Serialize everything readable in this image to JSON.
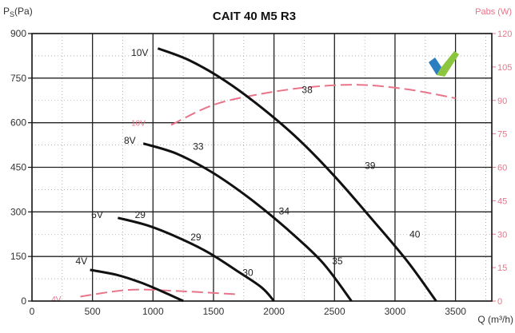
{
  "chart_data": {
    "type": "line",
    "title": "CAIT 40 M5 R3",
    "ylabel": "Ps (Pa)",
    "ylabel_base": "P",
    "ylabel_sub": "S",
    "ylabel_unit": "(Pa)",
    "y2label": "Pabs (W)",
    "xlabel": "Q (m³/h)",
    "xlim": [
      0,
      3800
    ],
    "ylim": [
      0,
      900
    ],
    "y2lim": [
      0,
      120
    ],
    "x_ticks": [
      "0",
      "500",
      "1000",
      "1500",
      "2000",
      "2500",
      "3000",
      "3500"
    ],
    "y_ticks": [
      "0",
      "150",
      "300",
      "450",
      "600",
      "750",
      "900"
    ],
    "y2_ticks": [
      "0",
      "15",
      "30",
      "45",
      "60",
      "75",
      "90",
      "105",
      "120"
    ],
    "grid": true,
    "colors": {
      "pressure": "#111111",
      "power": "#e8748a",
      "grid": "#222222"
    },
    "series": [
      {
        "name": "10V",
        "points": [
          [
            1040,
            850
          ],
          [
            1300,
            810
          ],
          [
            1600,
            740
          ],
          [
            1900,
            650
          ],
          [
            2200,
            545
          ],
          [
            2500,
            420
          ],
          [
            2800,
            280
          ],
          [
            3100,
            135
          ],
          [
            3340,
            0
          ]
        ],
        "labels": [
          {
            "text": "10V",
            "x": 820,
            "y": 835
          },
          {
            "text": "38",
            "x": 2230,
            "y": 710
          },
          {
            "text": "39",
            "x": 2750,
            "y": 455
          },
          {
            "text": "40",
            "x": 3120,
            "y": 225
          }
        ]
      },
      {
        "name": "8V",
        "points": [
          [
            920,
            530
          ],
          [
            1200,
            495
          ],
          [
            1500,
            430
          ],
          [
            1800,
            345
          ],
          [
            2100,
            245
          ],
          [
            2400,
            130
          ],
          [
            2640,
            0
          ]
        ],
        "labels": [
          {
            "text": "8V",
            "x": 760,
            "y": 540
          },
          {
            "text": "33",
            "x": 1330,
            "y": 520
          },
          {
            "text": "34",
            "x": 2040,
            "y": 302
          },
          {
            "text": "35",
            "x": 2480,
            "y": 135
          }
        ]
      },
      {
        "name": "6V",
        "points": [
          [
            710,
            280
          ],
          [
            950,
            255
          ],
          [
            1200,
            215
          ],
          [
            1450,
            165
          ],
          [
            1700,
            100
          ],
          [
            1900,
            45
          ],
          [
            2000,
            0
          ]
        ],
        "labels": [
          {
            "text": "6V",
            "x": 490,
            "y": 290
          },
          {
            "text": "29",
            "x": 850,
            "y": 290
          },
          {
            "text": "29",
            "x": 1310,
            "y": 215
          },
          {
            "text": "30",
            "x": 1740,
            "y": 95
          }
        ]
      },
      {
        "name": "4V",
        "points": [
          [
            480,
            105
          ],
          [
            700,
            88
          ],
          [
            900,
            62
          ],
          [
            1100,
            28
          ],
          [
            1250,
            0
          ]
        ],
        "labels": [
          {
            "text": "4V",
            "x": 360,
            "y": 135
          }
        ]
      }
    ],
    "power_series": [
      {
        "name": "10V",
        "points": [
          [
            1150,
            79
          ],
          [
            1500,
            88
          ],
          [
            1900,
            93
          ],
          [
            2300,
            96
          ],
          [
            2700,
            97
          ],
          [
            3100,
            95
          ],
          [
            3500,
            91
          ]
        ],
        "label": {
          "text": "10V",
          "x": 820,
          "y": 80
        }
      },
      {
        "name": "4V",
        "points": [
          [
            400,
            2
          ],
          [
            800,
            5
          ],
          [
            1200,
            4.5
          ],
          [
            1700,
            3
          ]
        ],
        "label": {
          "text": "4V",
          "x": 160,
          "y": 1
        }
      }
    ]
  },
  "logo": {
    "name": "checkmark-logo",
    "colors": [
      "#2b7fc1",
      "#8cc63f"
    ]
  }
}
